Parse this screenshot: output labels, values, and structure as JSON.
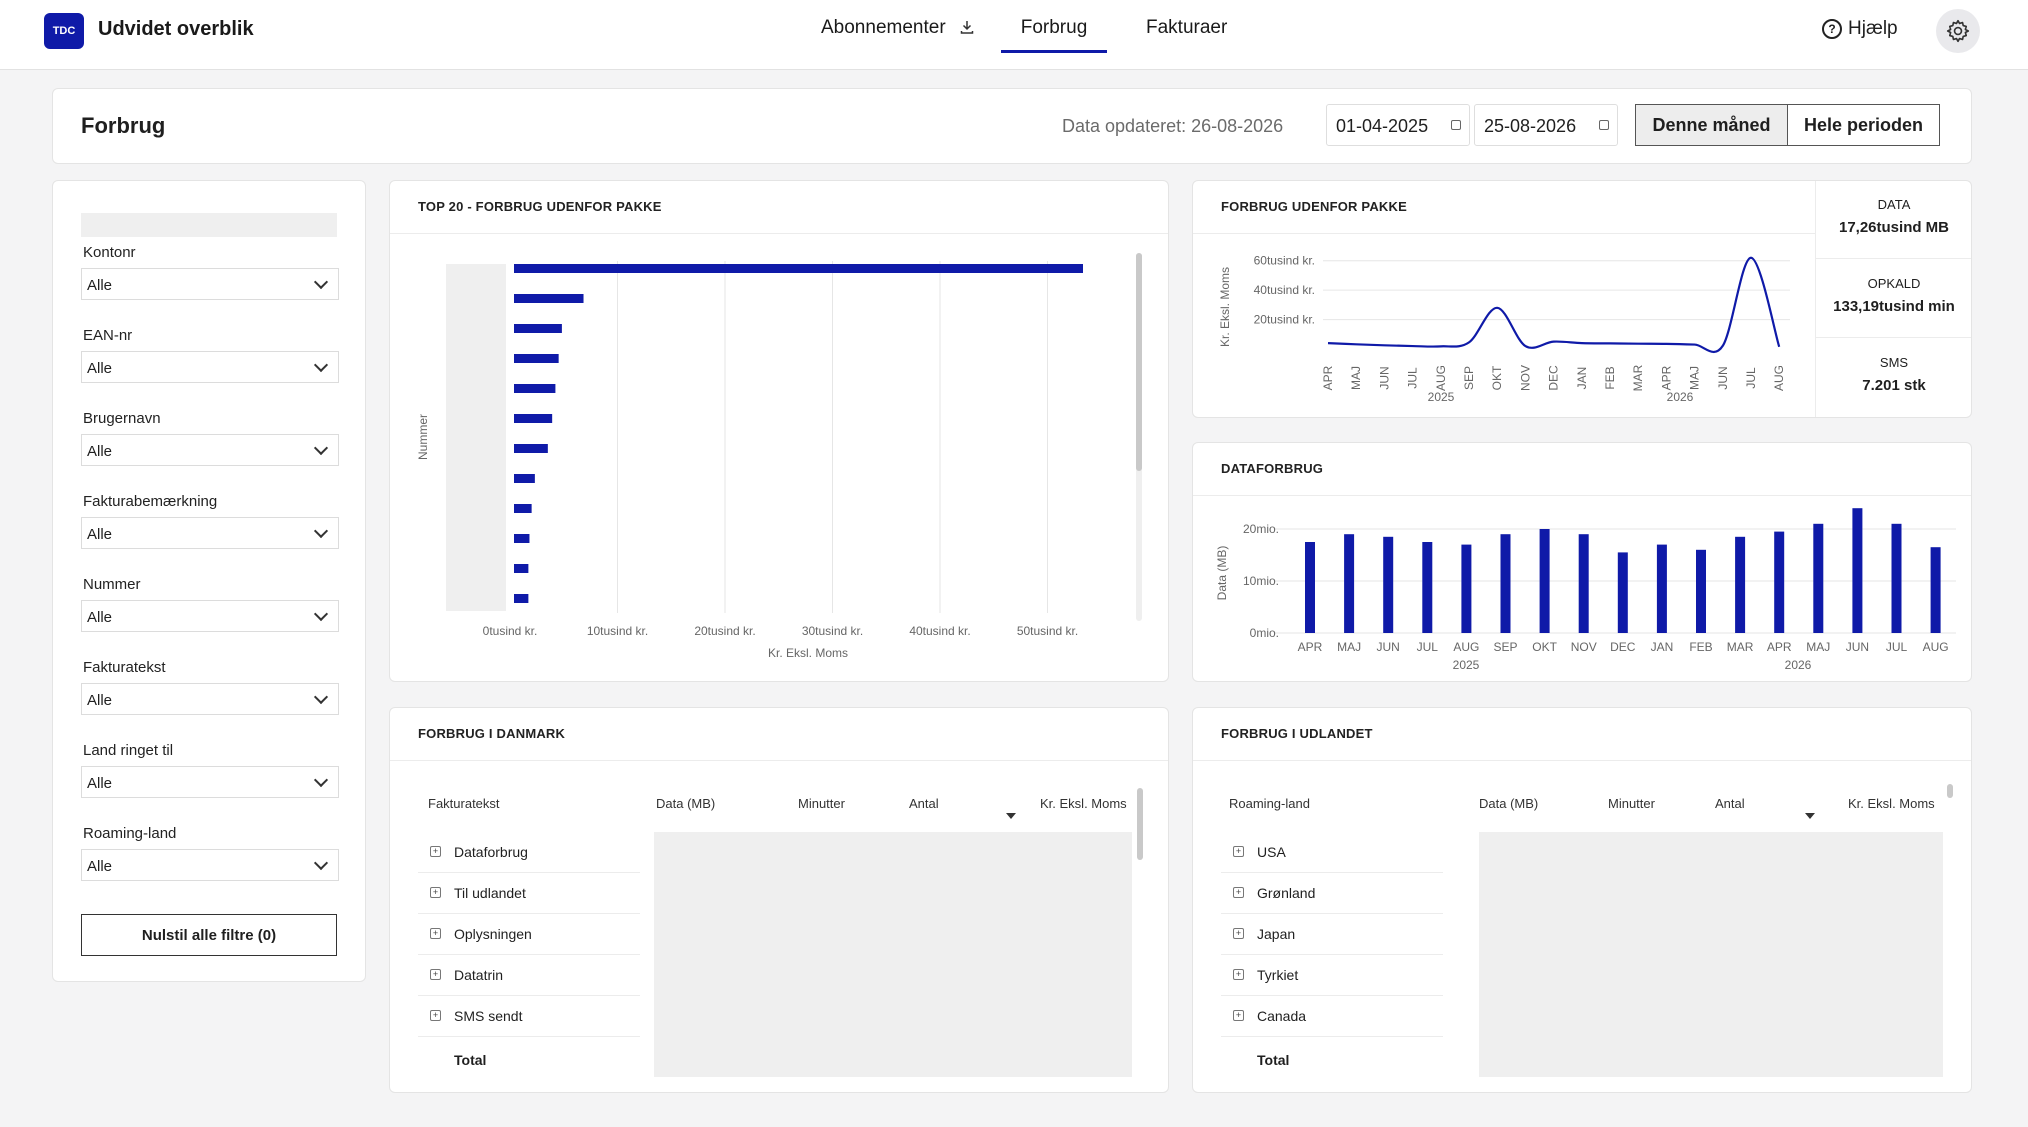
{
  "app": {
    "logo_text": "TDC",
    "title": "Udvidet overblik"
  },
  "nav": {
    "tabs": [
      {
        "label": "Abonnementer",
        "icon": "download-icon"
      },
      {
        "label": "Forbrug",
        "active": true
      },
      {
        "label": "Fakturaer"
      }
    ],
    "help_label": "Hjælp"
  },
  "header": {
    "title": "Forbrug",
    "updated": "Data opdateret: 26-08-2026",
    "date_from": "01-04-2025",
    "date_to": "25-08-2026",
    "btn_month": "Denne måned",
    "btn_period": "Hele perioden"
  },
  "filters": {
    "items": [
      {
        "label": "Kontonr",
        "value": "Alle"
      },
      {
        "label": "EAN-nr",
        "value": "Alle"
      },
      {
        "label": "Brugernavn",
        "value": "Alle"
      },
      {
        "label": "Fakturabemærkning",
        "value": "Alle"
      },
      {
        "label": "Nummer",
        "value": "Alle"
      },
      {
        "label": "Fakturatekst",
        "value": "Alle"
      },
      {
        "label": "Land ringet til",
        "value": "Alle"
      },
      {
        "label": "Roaming-land",
        "value": "Alle"
      }
    ],
    "reset_label": "Nulstil alle filtre (0)"
  },
  "top20": {
    "title": "TOP 20 - FORBRUG UDENFOR PAKKE",
    "ylabel": "Nummer",
    "xlabel": "Kr. Eksl. Moms",
    "ticks": [
      "0tusind kr.",
      "10tusind kr.",
      "20tusind kr.",
      "30tusind kr.",
      "40tusind kr.",
      "50tusind kr."
    ]
  },
  "line_card": {
    "title": "FORBRUG UDENFOR PAKKE",
    "ylabel": "Kr. Eksl. Moms",
    "yticks": [
      "20tusind kr.",
      "40tusind kr.",
      "60tusind kr."
    ],
    "years": [
      "2025",
      "2026"
    ],
    "kpis": [
      {
        "label": "DATA",
        "value": "17,26tusind MB"
      },
      {
        "label": "OPKALD",
        "value": "133,19tusind min"
      },
      {
        "label": "SMS",
        "value": "7.201 stk"
      }
    ]
  },
  "data_card": {
    "title": "DATAFORBRUG",
    "ylabel": "Data (MB)",
    "yticks": [
      "0mio.",
      "10mio.",
      "20mio."
    ],
    "years": [
      "2025",
      "2026"
    ]
  },
  "dk_table": {
    "title": "FORBRUG I DANMARK",
    "columns": [
      "Fakturatekst",
      "Data (MB)",
      "Minutter",
      "Antal",
      "Kr. Eksl. Moms"
    ],
    "rows": [
      "Dataforbrug",
      "Til udlandet",
      "Oplysningen",
      "Datatrin",
      "SMS sendt"
    ],
    "total": "Total"
  },
  "abroad_table": {
    "title": "FORBRUG I UDLANDET",
    "columns": [
      "Roaming-land",
      "Data (MB)",
      "Minutter",
      "Antal",
      "Kr. Eksl. Moms"
    ],
    "rows": [
      "USA",
      "Grønland",
      "Japan",
      "Tyrkiet",
      "Canada"
    ],
    "total": "Total"
  },
  "colors": {
    "accent": "#0f1aa8",
    "line": "#0f1aa8"
  },
  "chart_data": [
    {
      "type": "bar",
      "orientation": "horizontal",
      "title": "TOP 20 - FORBRUG UDENFOR PAKKE",
      "xlabel": "Kr. Eksl. Moms",
      "ylabel": "Nummer",
      "xlim": [
        0,
        53000
      ],
      "categories": [
        "",
        "",
        "",
        "",
        "",
        "",
        "",
        "",
        "",
        "",
        "",
        ""
      ],
      "values": [
        53000,
        6800,
        4800,
        4500,
        4200,
        3900,
        3500,
        2300,
        2000,
        1800,
        1700,
        1700
      ]
    },
    {
      "type": "line",
      "title": "FORBRUG UDENFOR PAKKE",
      "ylabel": "Kr. Eksl. Moms",
      "ylim": [
        0,
        70000
      ],
      "x": [
        "APR",
        "MAJ",
        "JUN",
        "JUL",
        "AUG",
        "SEP",
        "OKT",
        "NOV",
        "DEC",
        "JAN",
        "FEB",
        "MAR",
        "APR",
        "MAJ",
        "JUN",
        "JUL",
        "AUG"
      ],
      "series": [
        {
          "values": [
            4000,
            3200,
            2500,
            2000,
            1800,
            4500,
            28000,
            2000,
            5000,
            4000,
            3800,
            3600,
            3500,
            3000,
            2200,
            62000,
            1500
          ]
        }
      ]
    },
    {
      "type": "bar",
      "title": "DATAFORBRUG",
      "ylabel": "Data (MB)",
      "ylim": [
        0,
        25000000
      ],
      "categories": [
        "APR",
        "MAJ",
        "JUN",
        "JUL",
        "AUG",
        "SEP",
        "OKT",
        "NOV",
        "DEC",
        "JAN",
        "FEB",
        "MAR",
        "APR",
        "MAJ",
        "JUN",
        "JUL",
        "AUG"
      ],
      "values": [
        17500000,
        19000000,
        18500000,
        17500000,
        17000000,
        19000000,
        20000000,
        19000000,
        15500000,
        17000000,
        16000000,
        18500000,
        19500000,
        21000000,
        24000000,
        21000000,
        16500000
      ]
    }
  ]
}
